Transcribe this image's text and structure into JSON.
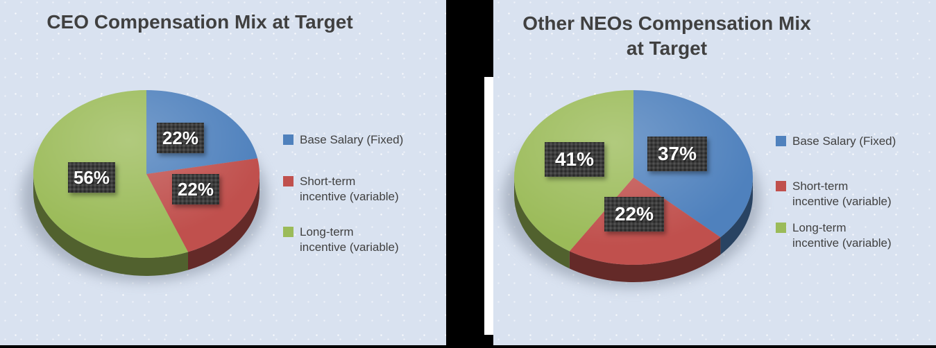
{
  "page": {
    "background_color": "#000000",
    "panel_background_color": "#d9e2f0",
    "divider_color": "#ffffff",
    "title_color": "#404040",
    "label_box_color": "#3d3d3d",
    "label_text_color": "#ffffff"
  },
  "chart_data": [
    {
      "type": "pie",
      "style": "3d",
      "title": "CEO Compensation Mix at Target",
      "categories": [
        "Base Salary (Fixed)",
        "Short-term incentive (variable)",
        "Long-term incentive (variable)"
      ],
      "values": [
        22,
        22,
        56
      ],
      "data_labels": [
        "22%",
        "22%",
        "56%"
      ],
      "colors": [
        "#4F81BD",
        "#C0504D",
        "#9BBB59"
      ],
      "legend": [
        "Base Salary (Fixed)",
        "Short-term\nincentive (variable)",
        "Long-term\nincentive (variable)"
      ],
      "legend_position": "right",
      "start_angle_deg": 0,
      "direction": "clockwise"
    },
    {
      "type": "pie",
      "style": "3d",
      "title": "Other NEOs Compensation Mix\nat Target",
      "categories": [
        "Base Salary (Fixed)",
        "Short-term incentive (variable)",
        "Long-term incentive (variable)"
      ],
      "values": [
        37,
        22,
        41
      ],
      "data_labels": [
        "37%",
        "22%",
        "41%"
      ],
      "colors": [
        "#4F81BD",
        "#C0504D",
        "#9BBB59"
      ],
      "legend": [
        "Base Salary (Fixed)",
        "Short-term\nincentive (variable)",
        "Long-term\nincentive (variable)"
      ],
      "legend_position": "right",
      "start_angle_deg": 0,
      "direction": "clockwise"
    }
  ]
}
